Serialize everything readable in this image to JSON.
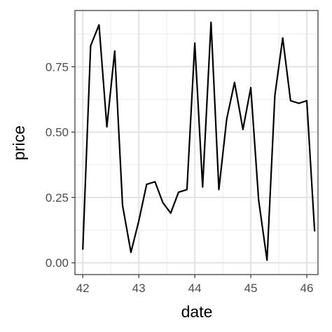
{
  "chart_data": {
    "type": "line",
    "xlabel": "date",
    "ylabel": "price",
    "xlim": [
      41.86,
      46.2
    ],
    "ylim": [
      -0.045,
      0.965
    ],
    "x_ticks": [
      42,
      43,
      44,
      45,
      46
    ],
    "y_ticks": [
      0.0,
      0.25,
      0.5,
      0.75
    ],
    "y_tick_labels": [
      "0.00",
      "0.25",
      "0.50",
      "0.75"
    ],
    "grid": true,
    "theme": "bw",
    "line_color": "#000000",
    "series": [
      {
        "x": [
          42.0,
          42.14,
          42.29,
          42.43,
          42.57,
          42.71,
          42.86,
          43.0,
          43.14,
          43.29,
          43.43,
          43.57,
          43.71,
          43.86,
          44.0,
          44.14,
          44.29,
          44.43,
          44.57,
          44.71,
          44.86,
          45.0,
          45.14,
          45.29,
          45.43,
          45.57,
          45.71,
          45.86,
          46.0,
          46.14
        ],
        "values": [
          0.05,
          0.83,
          0.91,
          0.52,
          0.81,
          0.22,
          0.04,
          0.16,
          0.3,
          0.31,
          0.23,
          0.19,
          0.27,
          0.28,
          0.84,
          0.29,
          0.92,
          0.28,
          0.55,
          0.69,
          0.51,
          0.67,
          0.24,
          0.01,
          0.64,
          0.86,
          0.62,
          0.61,
          0.62,
          0.12
        ]
      }
    ]
  }
}
